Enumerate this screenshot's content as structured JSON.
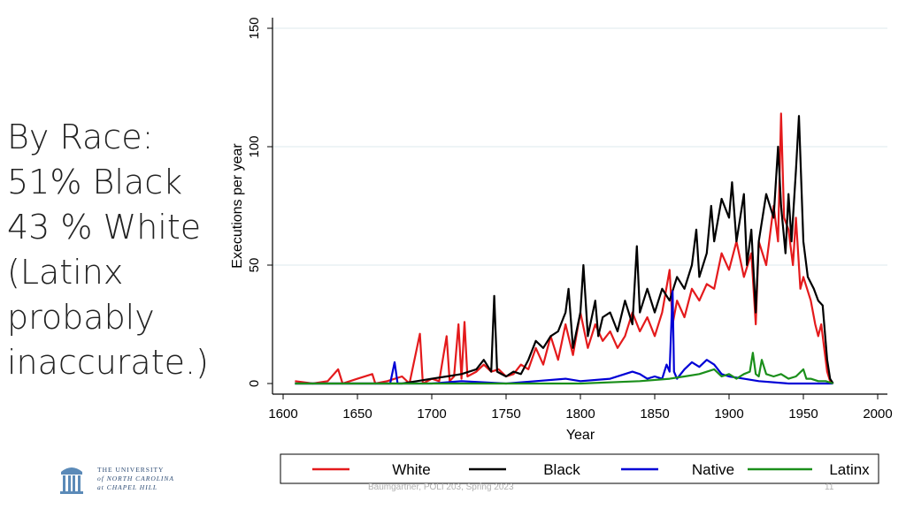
{
  "slide": {
    "lines": [
      "By Race:",
      "51% Black",
      "43 % White",
      "(Latinx",
      "probably",
      "inaccurate.)"
    ],
    "footer_left": "Baumgartner, POLI 203, Spring 2023",
    "page_number": "11"
  },
  "logo": {
    "line1": "THE UNIVERSITY",
    "line2": "of NORTH CAROLINA",
    "line3": "at CHAPEL HILL"
  },
  "chart_data": {
    "type": "line",
    "xlabel": "Year",
    "ylabel": "Executions per year",
    "xlim": [
      1600,
      2000
    ],
    "ylim": [
      0,
      150
    ],
    "xticks": [
      1600,
      1650,
      1700,
      1750,
      1800,
      1850,
      1900,
      1950,
      2000
    ],
    "yticks": [
      0,
      50,
      100,
      150
    ],
    "grid": "horizontal",
    "legend_position": "bottom",
    "colors": {
      "White": "#e41a1c",
      "Black": "#000000",
      "Native": "#0000d6",
      "Latinx": "#1b8f1b"
    },
    "series": [
      {
        "name": "White",
        "color": "#e41a1c",
        "points": [
          [
            1608,
            1
          ],
          [
            1620,
            0
          ],
          [
            1630,
            1
          ],
          [
            1637,
            6
          ],
          [
            1640,
            0
          ],
          [
            1650,
            2
          ],
          [
            1660,
            4
          ],
          [
            1662,
            0
          ],
          [
            1670,
            1
          ],
          [
            1680,
            3
          ],
          [
            1685,
            0
          ],
          [
            1692,
            21
          ],
          [
            1694,
            0
          ],
          [
            1700,
            2
          ],
          [
            1705,
            1
          ],
          [
            1710,
            20
          ],
          [
            1712,
            1
          ],
          [
            1715,
            3
          ],
          [
            1718,
            25
          ],
          [
            1720,
            2
          ],
          [
            1722,
            26
          ],
          [
            1724,
            3
          ],
          [
            1730,
            5
          ],
          [
            1735,
            8
          ],
          [
            1740,
            5
          ],
          [
            1745,
            6
          ],
          [
            1750,
            3
          ],
          [
            1755,
            4
          ],
          [
            1760,
            8
          ],
          [
            1765,
            6
          ],
          [
            1770,
            15
          ],
          [
            1775,
            8
          ],
          [
            1780,
            20
          ],
          [
            1785,
            10
          ],
          [
            1790,
            25
          ],
          [
            1795,
            12
          ],
          [
            1800,
            30
          ],
          [
            1805,
            15
          ],
          [
            1810,
            25
          ],
          [
            1815,
            18
          ],
          [
            1820,
            22
          ],
          [
            1825,
            15
          ],
          [
            1830,
            20
          ],
          [
            1835,
            30
          ],
          [
            1840,
            22
          ],
          [
            1845,
            28
          ],
          [
            1850,
            20
          ],
          [
            1855,
            30
          ],
          [
            1860,
            48
          ],
          [
            1862,
            25
          ],
          [
            1865,
            35
          ],
          [
            1870,
            28
          ],
          [
            1875,
            40
          ],
          [
            1880,
            35
          ],
          [
            1885,
            42
          ],
          [
            1890,
            40
          ],
          [
            1895,
            55
          ],
          [
            1900,
            48
          ],
          [
            1905,
            60
          ],
          [
            1910,
            45
          ],
          [
            1915,
            55
          ],
          [
            1918,
            25
          ],
          [
            1920,
            60
          ],
          [
            1925,
            50
          ],
          [
            1930,
            75
          ],
          [
            1933,
            60
          ],
          [
            1935,
            114
          ],
          [
            1937,
            70
          ],
          [
            1940,
            65
          ],
          [
            1943,
            50
          ],
          [
            1945,
            70
          ],
          [
            1948,
            40
          ],
          [
            1950,
            45
          ],
          [
            1955,
            35
          ],
          [
            1958,
            25
          ],
          [
            1960,
            20
          ],
          [
            1962,
            25
          ],
          [
            1964,
            15
          ],
          [
            1966,
            5
          ],
          [
            1968,
            1
          ],
          [
            1970,
            0
          ]
        ]
      },
      {
        "name": "Black",
        "color": "#000000",
        "points": [
          [
            1608,
            0
          ],
          [
            1650,
            0
          ],
          [
            1680,
            0
          ],
          [
            1690,
            1
          ],
          [
            1700,
            2
          ],
          [
            1710,
            3
          ],
          [
            1720,
            4
          ],
          [
            1730,
            6
          ],
          [
            1735,
            10
          ],
          [
            1740,
            5
          ],
          [
            1742,
            37
          ],
          [
            1744,
            5
          ],
          [
            1750,
            3
          ],
          [
            1755,
            5
          ],
          [
            1760,
            4
          ],
          [
            1765,
            10
          ],
          [
            1770,
            18
          ],
          [
            1775,
            15
          ],
          [
            1780,
            20
          ],
          [
            1785,
            22
          ],
          [
            1790,
            30
          ],
          [
            1792,
            40
          ],
          [
            1795,
            15
          ],
          [
            1800,
            30
          ],
          [
            1802,
            50
          ],
          [
            1805,
            20
          ],
          [
            1810,
            35
          ],
          [
            1812,
            20
          ],
          [
            1815,
            28
          ],
          [
            1820,
            30
          ],
          [
            1825,
            22
          ],
          [
            1830,
            35
          ],
          [
            1835,
            25
          ],
          [
            1838,
            58
          ],
          [
            1840,
            30
          ],
          [
            1845,
            40
          ],
          [
            1850,
            30
          ],
          [
            1855,
            40
          ],
          [
            1860,
            35
          ],
          [
            1865,
            45
          ],
          [
            1870,
            40
          ],
          [
            1875,
            50
          ],
          [
            1878,
            65
          ],
          [
            1880,
            45
          ],
          [
            1885,
            55
          ],
          [
            1888,
            75
          ],
          [
            1890,
            60
          ],
          [
            1895,
            78
          ],
          [
            1900,
            70
          ],
          [
            1902,
            85
          ],
          [
            1905,
            60
          ],
          [
            1910,
            80
          ],
          [
            1912,
            50
          ],
          [
            1915,
            65
          ],
          [
            1918,
            30
          ],
          [
            1920,
            60
          ],
          [
            1925,
            80
          ],
          [
            1930,
            70
          ],
          [
            1933,
            100
          ],
          [
            1935,
            75
          ],
          [
            1938,
            55
          ],
          [
            1940,
            80
          ],
          [
            1942,
            60
          ],
          [
            1945,
            90
          ],
          [
            1947,
            113
          ],
          [
            1950,
            60
          ],
          [
            1953,
            45
          ],
          [
            1957,
            40
          ],
          [
            1960,
            35
          ],
          [
            1963,
            33
          ],
          [
            1966,
            10
          ],
          [
            1968,
            2
          ],
          [
            1970,
            0
          ]
        ]
      },
      {
        "name": "Native",
        "color": "#0000d6",
        "points": [
          [
            1608,
            0
          ],
          [
            1660,
            0
          ],
          [
            1672,
            0
          ],
          [
            1675,
            9
          ],
          [
            1677,
            0
          ],
          [
            1700,
            0
          ],
          [
            1720,
            1
          ],
          [
            1750,
            0
          ],
          [
            1770,
            1
          ],
          [
            1790,
            2
          ],
          [
            1800,
            1
          ],
          [
            1820,
            2
          ],
          [
            1835,
            5
          ],
          [
            1840,
            4
          ],
          [
            1845,
            2
          ],
          [
            1850,
            3
          ],
          [
            1855,
            2
          ],
          [
            1858,
            8
          ],
          [
            1860,
            5
          ],
          [
            1862,
            39
          ],
          [
            1863,
            5
          ],
          [
            1865,
            2
          ],
          [
            1870,
            6
          ],
          [
            1875,
            9
          ],
          [
            1880,
            7
          ],
          [
            1885,
            10
          ],
          [
            1890,
            8
          ],
          [
            1895,
            4
          ],
          [
            1900,
            3
          ],
          [
            1910,
            2
          ],
          [
            1920,
            1
          ],
          [
            1940,
            0
          ],
          [
            1970,
            0
          ]
        ]
      },
      {
        "name": "Latinx",
        "color": "#1b8f1b",
        "points": [
          [
            1608,
            0
          ],
          [
            1800,
            0
          ],
          [
            1840,
            1
          ],
          [
            1860,
            2
          ],
          [
            1870,
            3
          ],
          [
            1880,
            4
          ],
          [
            1890,
            6
          ],
          [
            1895,
            3
          ],
          [
            1900,
            4
          ],
          [
            1905,
            2
          ],
          [
            1910,
            4
          ],
          [
            1914,
            5
          ],
          [
            1916,
            13
          ],
          [
            1918,
            4
          ],
          [
            1920,
            3
          ],
          [
            1922,
            10
          ],
          [
            1925,
            4
          ],
          [
            1930,
            3
          ],
          [
            1935,
            4
          ],
          [
            1940,
            2
          ],
          [
            1945,
            3
          ],
          [
            1950,
            6
          ],
          [
            1952,
            2
          ],
          [
            1955,
            2
          ],
          [
            1960,
            1
          ],
          [
            1965,
            1
          ],
          [
            1970,
            0
          ]
        ]
      }
    ]
  }
}
